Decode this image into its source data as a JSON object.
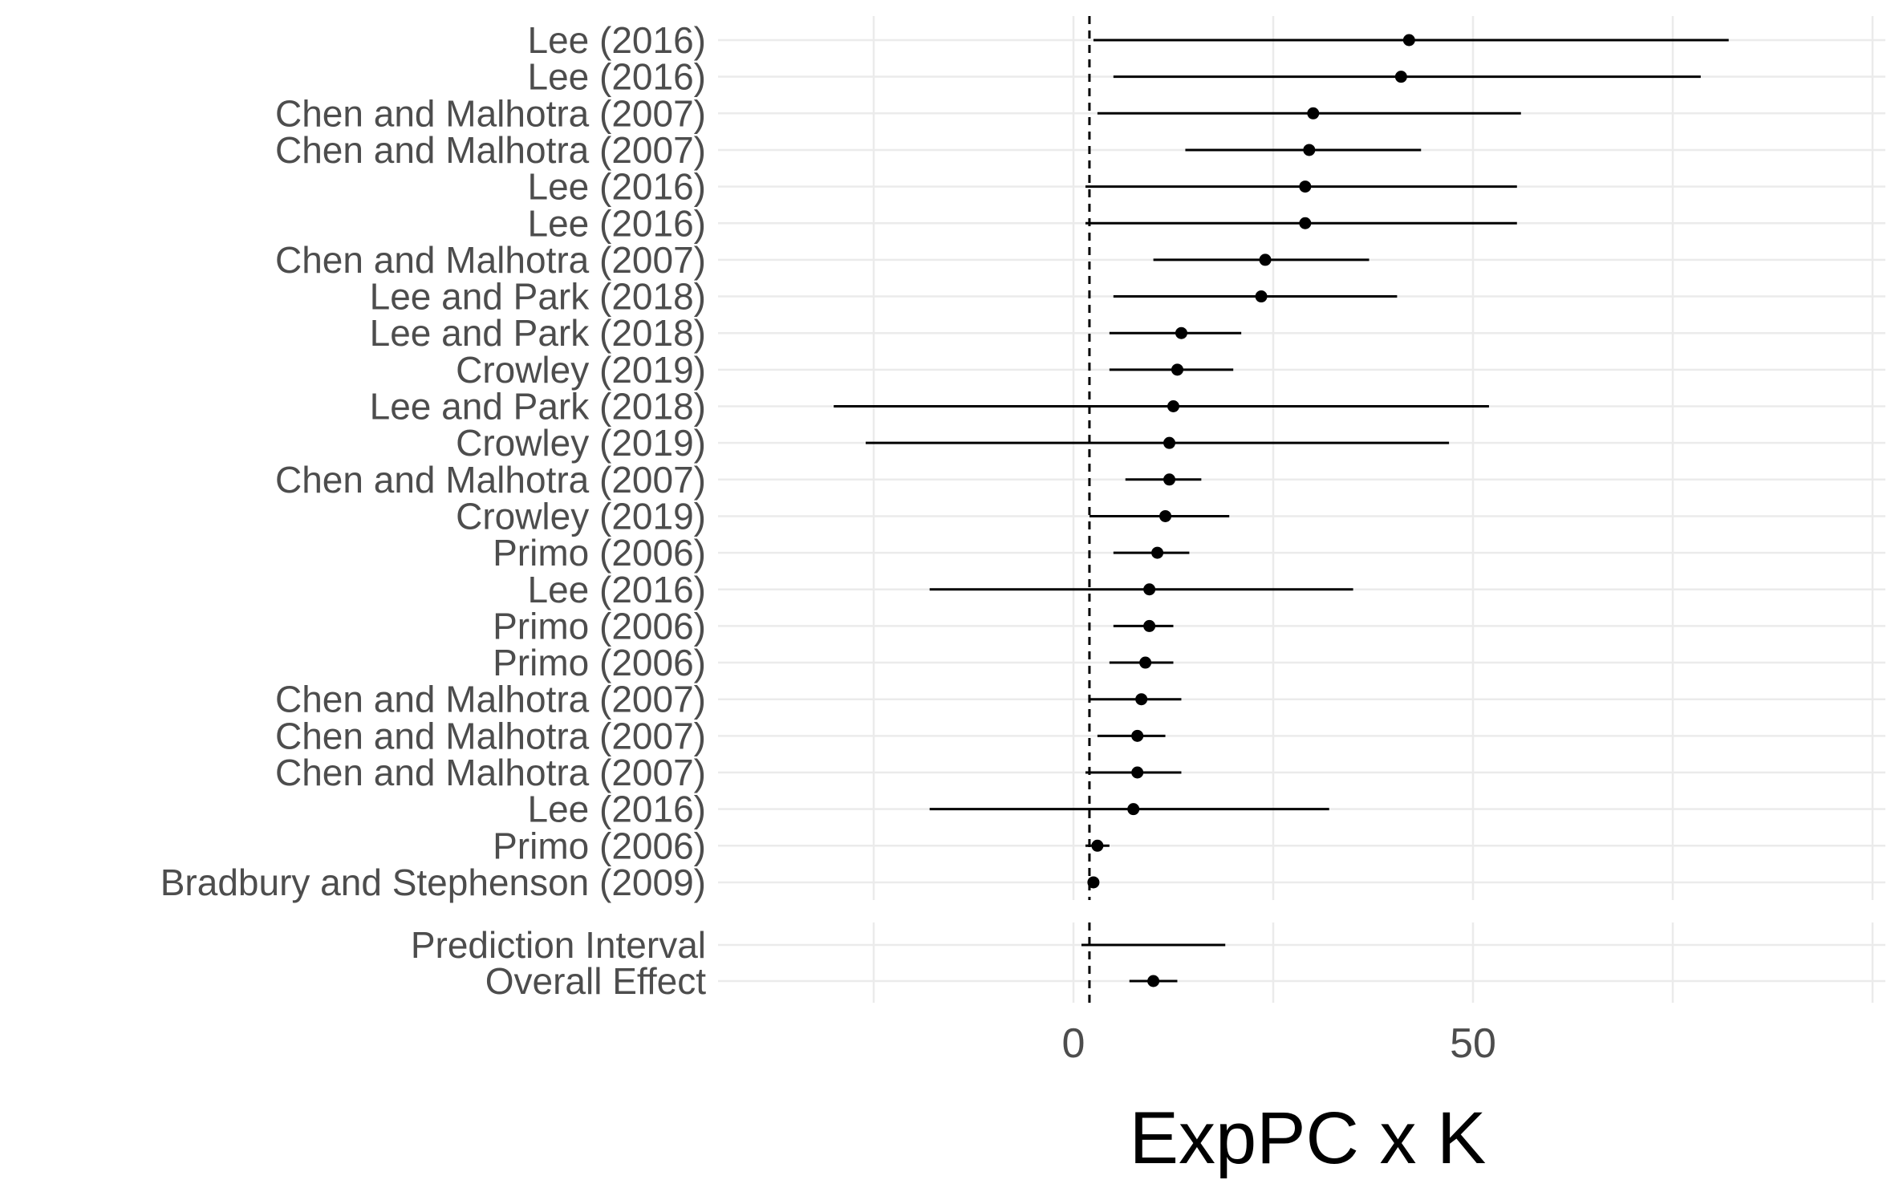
{
  "chart_data": {
    "type": "forest",
    "xlabel": "ExpPC x K",
    "x_ticks": [
      0,
      50
    ],
    "xlim": [
      -40,
      104
    ],
    "reference_line_x": 2,
    "studies": [
      {
        "label": "Lee (2016)",
        "estimate": 42.0,
        "lower": 2.5,
        "upper": 82.0
      },
      {
        "label": "Lee (2016)",
        "estimate": 41.0,
        "lower": 5.0,
        "upper": 78.5
      },
      {
        "label": "Chen and Malhotra (2007)",
        "estimate": 30.0,
        "lower": 3.0,
        "upper": 56.0
      },
      {
        "label": "Chen and Malhotra (2007)",
        "estimate": 29.5,
        "lower": 14.0,
        "upper": 43.5
      },
      {
        "label": "Lee (2016)",
        "estimate": 29.0,
        "lower": 1.5,
        "upper": 55.5
      },
      {
        "label": "Lee (2016)",
        "estimate": 29.0,
        "lower": 1.5,
        "upper": 55.5
      },
      {
        "label": "Chen and Malhotra (2007)",
        "estimate": 24.0,
        "lower": 10.0,
        "upper": 37.0
      },
      {
        "label": "Lee and Park (2018)",
        "estimate": 23.5,
        "lower": 5.0,
        "upper": 40.5
      },
      {
        "label": "Lee and Park (2018)",
        "estimate": 13.5,
        "lower": 4.5,
        "upper": 21.0
      },
      {
        "label": "Crowley (2019)",
        "estimate": 13.0,
        "lower": 4.5,
        "upper": 20.0
      },
      {
        "label": "Lee and Park (2018)",
        "estimate": 12.5,
        "lower": -30.0,
        "upper": 52.0
      },
      {
        "label": "Crowley (2019)",
        "estimate": 12.0,
        "lower": -26.0,
        "upper": 47.0
      },
      {
        "label": "Chen and Malhotra (2007)",
        "estimate": 12.0,
        "lower": 6.5,
        "upper": 16.0
      },
      {
        "label": "Crowley (2019)",
        "estimate": 11.5,
        "lower": 2.0,
        "upper": 19.5
      },
      {
        "label": "Primo (2006)",
        "estimate": 10.5,
        "lower": 5.0,
        "upper": 14.5
      },
      {
        "label": "Lee (2016)",
        "estimate": 9.5,
        "lower": -18.0,
        "upper": 35.0
      },
      {
        "label": "Primo (2006)",
        "estimate": 9.5,
        "lower": 5.0,
        "upper": 12.5
      },
      {
        "label": "Primo (2006)",
        "estimate": 9.0,
        "lower": 4.5,
        "upper": 12.5
      },
      {
        "label": "Chen and Malhotra (2007)",
        "estimate": 8.5,
        "lower": 2.0,
        "upper": 13.5
      },
      {
        "label": "Chen and Malhotra (2007)",
        "estimate": 8.0,
        "lower": 3.0,
        "upper": 11.5
      },
      {
        "label": "Chen and Malhotra (2007)",
        "estimate": 8.0,
        "lower": 1.5,
        "upper": 13.5
      },
      {
        "label": "Lee (2016)",
        "estimate": 7.5,
        "lower": -18.0,
        "upper": 32.0
      },
      {
        "label": "Primo (2006)",
        "estimate": 3.0,
        "lower": 1.5,
        "upper": 4.5
      },
      {
        "label": "Bradbury and Stephenson (2009)",
        "estimate": 2.5,
        "lower": 2.0,
        "upper": 3.0
      }
    ],
    "summary": [
      {
        "label": "Prediction Interval",
        "estimate": null,
        "lower": 1.0,
        "upper": 19.0
      },
      {
        "label": "Overall Effect",
        "estimate": 10.0,
        "lower": 7.0,
        "upper": 13.0
      }
    ],
    "grid": true
  }
}
